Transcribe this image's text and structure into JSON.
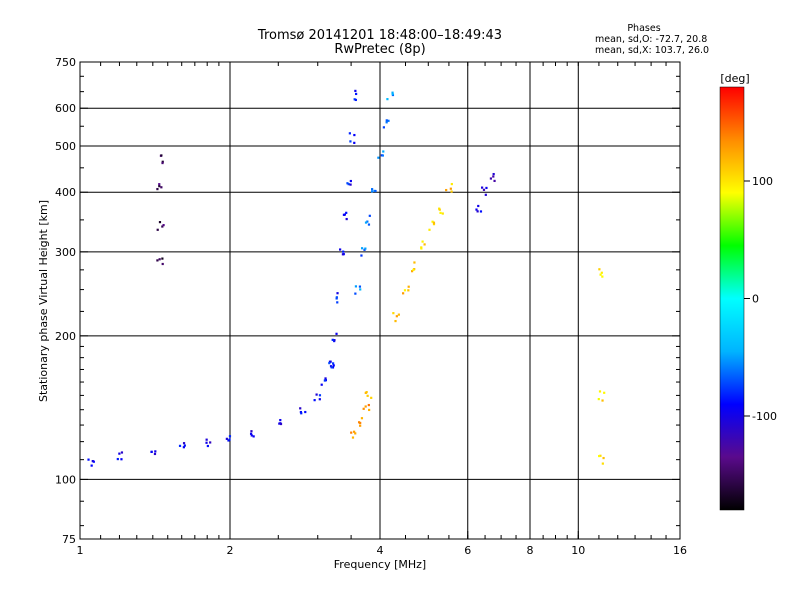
{
  "chart_data": {
    "type": "scatter",
    "title": "Tromsø 20141201 18:48:00–18:49:43",
    "subtitle": "RwPretec (8p)",
    "stats": {
      "heading": "Phases",
      "line1": "mean, sd,O: -72.7, 20.8",
      "line2": "mean, sd,X: 103.7, 26.0"
    },
    "xlabel": "Frequency [MHz]",
    "ylabel": "Stationary phase Virtual Height [km]",
    "x_scale": "log",
    "y_scale": "log",
    "xlim": [
      1,
      16
    ],
    "ylim": [
      75,
      750
    ],
    "x_ticks": [
      1,
      2,
      4,
      6,
      8,
      10,
      16
    ],
    "x_tick_labels": [
      "1",
      "2",
      "4",
      "6",
      "8",
      "10",
      "16"
    ],
    "y_ticks": [
      75,
      100,
      200,
      300,
      400,
      500,
      600,
      750
    ],
    "y_tick_labels": [
      "75",
      "100",
      "200",
      "300",
      "400",
      "500",
      "600",
      "750"
    ],
    "grid_x": [
      2,
      4,
      6,
      8,
      10
    ],
    "grid_y": [
      100,
      200,
      300,
      400,
      500,
      600
    ],
    "grid": true,
    "colorbar": {
      "label": "[deg]",
      "range": [
        -180,
        180
      ],
      "ticks": [
        100,
        0,
        -100
      ],
      "tick_labels": [
        "100",
        "0",
        "-100"
      ],
      "colormap": "rainbow",
      "colors": [
        "#000000",
        "#5a0a8c",
        "#0000ff",
        "#00b4ff",
        "#00ffff",
        "#00ff00",
        "#ffff00",
        "#ff8c00",
        "#ff0000"
      ]
    },
    "traces": [
      {
        "name": "",
        "x": [
          1.05,
          1.2,
          1.4,
          1.6,
          1.8,
          2.0,
          2.2,
          2.5,
          2.8,
          3.0,
          3.1,
          3.2
        ],
        "y": [
          108,
          112,
          115,
          118,
          120,
          123,
          125,
          130,
          138,
          148,
          160,
          175
        ],
        "phase": -95
      },
      {
        "name": "",
        "x": [
          3.2,
          3.25,
          3.3,
          3.35,
          3.4,
          3.45,
          3.5,
          3.55
        ],
        "y": [
          175,
          200,
          240,
          300,
          360,
          420,
          520,
          640
        ],
        "phase": -90
      },
      {
        "name": "",
        "x": [
          3.6,
          3.7,
          3.8,
          3.9,
          4.0,
          4.1,
          4.2
        ],
        "y": [
          250,
          300,
          350,
          400,
          480,
          560,
          640
        ],
        "phase": -60
      },
      {
        "name": "",
        "x": [
          4.3,
          4.5,
          4.7,
          4.9,
          5.1,
          5.3,
          5.5
        ],
        "y": [
          220,
          250,
          280,
          310,
          340,
          370,
          410
        ],
        "phase": 110
      },
      {
        "name": "",
        "x": [
          3.55,
          3.65,
          3.75,
          3.8
        ],
        "y": [
          125,
          132,
          140,
          150
        ],
        "phase": 125
      },
      {
        "name": "",
        "x": [
          6.3,
          6.5,
          6.7
        ],
        "y": [
          370,
          400,
          430
        ],
        "phase": -105
      },
      {
        "name": "",
        "x": [
          1.45,
          1.45,
          1.45,
          1.45
        ],
        "y": [
          290,
          340,
          410,
          470
        ],
        "phase": -150
      },
      {
        "name": "",
        "x": [
          11.1,
          11.1,
          11.1
        ],
        "y": [
          110,
          150,
          270
        ],
        "phase": 100
      }
    ]
  }
}
